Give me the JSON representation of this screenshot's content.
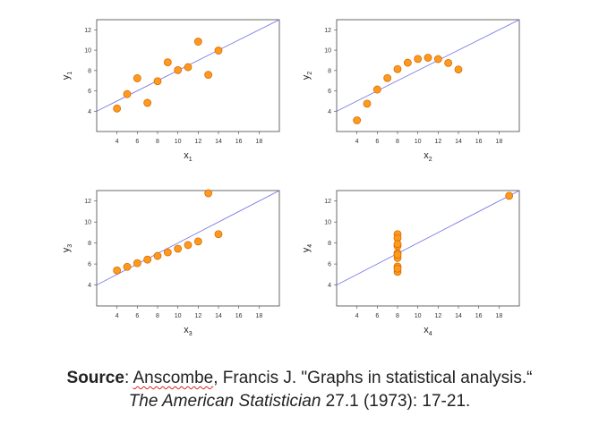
{
  "chart_data": [
    {
      "type": "scatter",
      "xlabel": "x",
      "xsub": "1",
      "ylabel": "y",
      "ysub": "1",
      "xlim": [
        2,
        20
      ],
      "ylim": [
        2,
        13
      ],
      "xticks": [
        4,
        6,
        8,
        10,
        12,
        14,
        16,
        18
      ],
      "yticks": [
        4,
        6,
        8,
        10,
        12
      ],
      "fit": {
        "intercept": 3.0,
        "slope": 0.5
      },
      "x": [
        10,
        8,
        13,
        9,
        11,
        14,
        6,
        4,
        12,
        7,
        5
      ],
      "y": [
        8.04,
        6.95,
        7.58,
        8.81,
        8.33,
        9.96,
        7.24,
        4.26,
        10.84,
        4.82,
        5.68
      ]
    },
    {
      "type": "scatter",
      "xlabel": "x",
      "xsub": "2",
      "ylabel": "y",
      "ysub": "2",
      "xlim": [
        2,
        20
      ],
      "ylim": [
        2,
        13
      ],
      "xticks": [
        4,
        6,
        8,
        10,
        12,
        14,
        16,
        18
      ],
      "yticks": [
        4,
        6,
        8,
        10,
        12
      ],
      "fit": {
        "intercept": 3.0,
        "slope": 0.5
      },
      "x": [
        10,
        8,
        13,
        9,
        11,
        14,
        6,
        4,
        12,
        7,
        5
      ],
      "y": [
        9.14,
        8.14,
        8.74,
        8.77,
        9.26,
        8.1,
        6.13,
        3.1,
        9.13,
        7.26,
        4.74
      ]
    },
    {
      "type": "scatter",
      "xlabel": "x",
      "xsub": "3",
      "ylabel": "y",
      "ysub": "3",
      "xlim": [
        2,
        20
      ],
      "ylim": [
        2,
        13
      ],
      "xticks": [
        4,
        6,
        8,
        10,
        12,
        14,
        16,
        18
      ],
      "yticks": [
        4,
        6,
        8,
        10,
        12
      ],
      "fit": {
        "intercept": 3.0,
        "slope": 0.5
      },
      "x": [
        10,
        8,
        13,
        9,
        11,
        14,
        6,
        4,
        12,
        7,
        5
      ],
      "y": [
        7.46,
        6.77,
        12.74,
        7.11,
        7.81,
        8.84,
        6.08,
        5.39,
        8.15,
        6.42,
        5.73
      ]
    },
    {
      "type": "scatter",
      "xlabel": "x",
      "xsub": "4",
      "ylabel": "y",
      "ysub": "4",
      "xlim": [
        2,
        20
      ],
      "ylim": [
        2,
        13
      ],
      "xticks": [
        4,
        6,
        8,
        10,
        12,
        14,
        16,
        18
      ],
      "yticks": [
        4,
        6,
        8,
        10,
        12
      ],
      "fit": {
        "intercept": 3.0,
        "slope": 0.5
      },
      "x": [
        8,
        8,
        8,
        8,
        8,
        8,
        8,
        19,
        8,
        8,
        8
      ],
      "y": [
        6.58,
        5.76,
        7.71,
        8.84,
        8.47,
        7.04,
        5.25,
        12.5,
        5.56,
        7.91,
        6.89
      ]
    }
  ],
  "colors": {
    "point_fill": "#ff9a1f",
    "point_stroke": "#d96a00",
    "fit_line": "#6f6fe8",
    "axis": "#444444"
  },
  "source": {
    "label": "Source",
    "author_pre": ": ",
    "author_name": "Anscombe",
    "author_post": ", Francis J. \"Graphs in statistical analysis.“",
    "journal": "The American Statistician",
    "details": " 27.1 (1973): 17-21."
  }
}
